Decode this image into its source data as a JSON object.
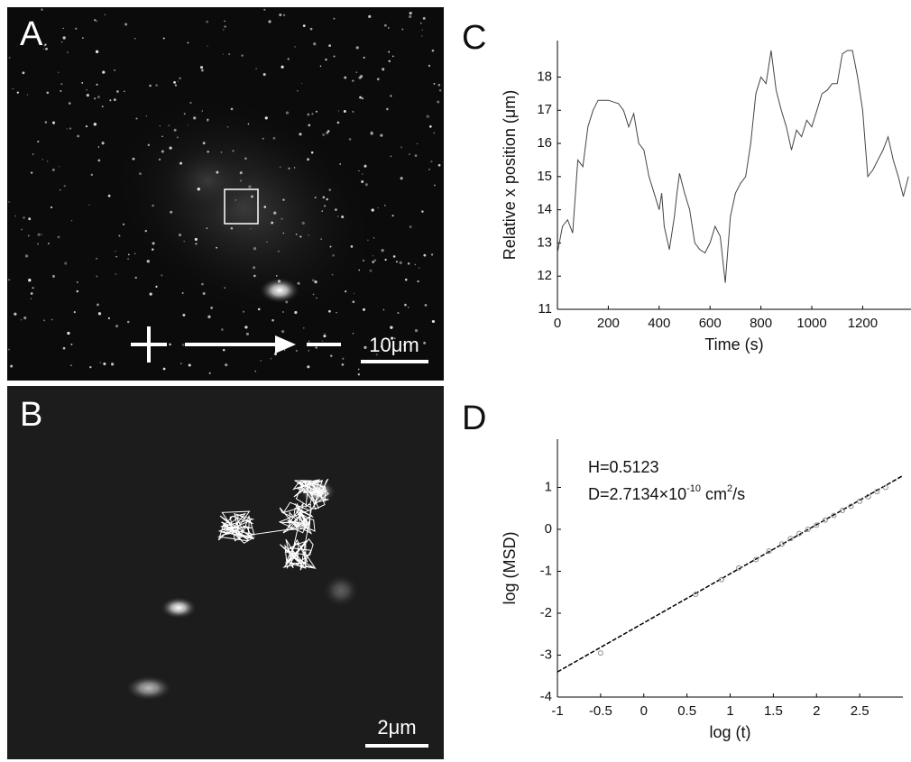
{
  "panels": {
    "a": {
      "label": "A",
      "scale_bar": "10μm"
    },
    "b": {
      "label": "B",
      "scale_bar": "2μm"
    },
    "c": {
      "label": "C"
    },
    "d": {
      "label": "D"
    }
  },
  "chart_data": [
    {
      "type": "line",
      "ylabel": "Relative x position (μm)",
      "xlabel": "Time (s)",
      "color": "#444444",
      "x": [
        0,
        20,
        40,
        60,
        80,
        100,
        120,
        140,
        160,
        200,
        240,
        260,
        280,
        300,
        320,
        340,
        360,
        380,
        400,
        410,
        420,
        440,
        460,
        470,
        480,
        500,
        520,
        540,
        560,
        580,
        600,
        620,
        640,
        660,
        680,
        700,
        720,
        740,
        760,
        780,
        800,
        820,
        840,
        860,
        880,
        900,
        920,
        940,
        960,
        980,
        1000,
        1020,
        1040,
        1060,
        1080,
        1100,
        1120,
        1140,
        1160,
        1180,
        1200,
        1210,
        1220,
        1240,
        1260,
        1280,
        1300,
        1320,
        1340,
        1360,
        1380
      ],
      "values": [
        12.7,
        13.5,
        13.7,
        13.3,
        15.5,
        15.3,
        16.5,
        17.0,
        17.3,
        17.3,
        17.2,
        17.0,
        16.5,
        16.9,
        16.0,
        15.8,
        15.0,
        14.5,
        14.0,
        14.5,
        13.5,
        12.8,
        13.8,
        14.5,
        15.1,
        14.5,
        14.0,
        13.0,
        12.8,
        12.7,
        13.0,
        13.5,
        13.2,
        11.8,
        13.8,
        14.5,
        14.8,
        15.0,
        16.0,
        17.5,
        18.0,
        17.8,
        18.8,
        17.6,
        17.0,
        16.5,
        15.8,
        16.4,
        16.2,
        16.7,
        16.5,
        17.0,
        17.5,
        17.6,
        17.8,
        17.8,
        18.7,
        18.8,
        18.8,
        18.0,
        17.0,
        16.0,
        15.0,
        15.2,
        15.5,
        15.8,
        16.2,
        15.5,
        15.0,
        14.4,
        15.0
      ],
      "xlim": [
        0,
        1390
      ],
      "ylim": [
        11,
        19.1
      ],
      "xticks": [
        0,
        200,
        400,
        600,
        800,
        1000,
        1200
      ],
      "yticks": [
        11,
        12,
        13,
        14,
        15,
        16,
        17,
        18
      ]
    },
    {
      "type": "scatter",
      "ylabel": "log (MSD)",
      "xlabel": "log (t)",
      "color": "#888888",
      "fit_color": "#000000",
      "annotations": [
        "H=0.5123",
        "D=2.7134×10",
        "-10",
        " cm",
        "2",
        "/s"
      ],
      "x": [
        -0.5,
        0.6,
        0.9,
        1.1,
        1.3,
        1.45,
        1.6,
        1.7,
        1.8,
        1.9,
        2.0,
        2.1,
        2.2,
        2.3,
        2.4,
        2.5,
        2.6,
        2.7,
        2.8
      ],
      "values": [
        -2.95,
        -1.55,
        -1.2,
        -0.92,
        -0.72,
        -0.52,
        -0.35,
        -0.22,
        -0.1,
        0.0,
        0.1,
        0.22,
        0.33,
        0.45,
        0.55,
        0.67,
        0.78,
        0.9,
        1.0
      ],
      "fit": {
        "x": [
          -1,
          3
        ],
        "values": [
          -3.4,
          1.28
        ]
      },
      "xlim": [
        -1,
        3
      ],
      "ylim": [
        -4,
        2.15
      ],
      "xticks": [
        -1,
        -0.5,
        0,
        0.5,
        1,
        1.5,
        2,
        2.5
      ],
      "yticks": [
        -4,
        -3,
        -2,
        -1,
        0,
        1
      ]
    }
  ]
}
